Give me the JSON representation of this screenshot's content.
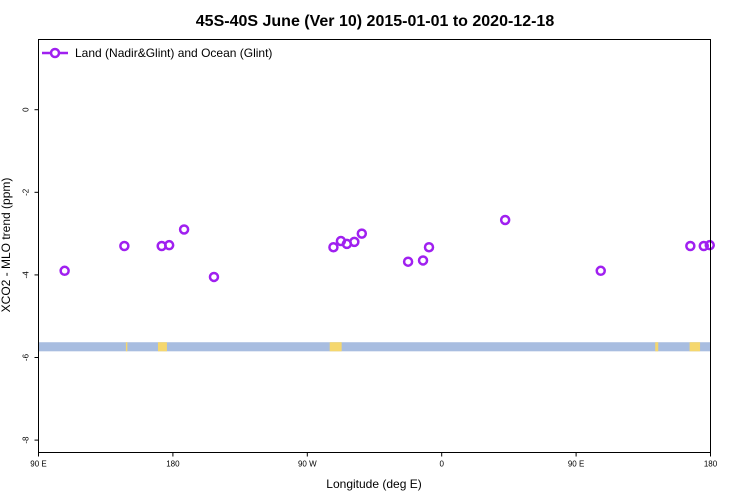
{
  "chart_data": {
    "type": "scatter",
    "title": "45S-40S June (Ver 10)   2015-01-01 to 2020-12-18",
    "xlabel": "Longitude (deg E)",
    "ylabel": "XCO2 - MLO trend (ppm)",
    "xlim": [
      90,
      540
    ],
    "ylim": [
      -8.3,
      1.7
    ],
    "x_ticks": [
      {
        "value": 90,
        "label": "90 E"
      },
      {
        "value": 180,
        "label": "180"
      },
      {
        "value": 270,
        "label": "90 W"
      },
      {
        "value": 360,
        "label": "0"
      },
      {
        "value": 450,
        "label": "90 E"
      },
      {
        "value": 540,
        "label": "180"
      }
    ],
    "y_ticks": [
      {
        "value": 0,
        "label": "0"
      },
      {
        "value": -2,
        "label": "-2"
      },
      {
        "value": -4,
        "label": "-4"
      },
      {
        "value": -6,
        "label": "-6"
      },
      {
        "value": -8,
        "label": "-8"
      }
    ],
    "grid": false,
    "legend_position": "top-left",
    "series": [
      {
        "name": "Land (Nadir&Glint) and Ocean (Glint)",
        "color": "#a020f0",
        "marker": "open-circle",
        "points": [
          {
            "x": 107.5,
            "y": -3.9
          },
          {
            "x": 147.5,
            "y": -3.3
          },
          {
            "x": 172.5,
            "y": -3.3
          },
          {
            "x": 177.5,
            "y": -3.28
          },
          {
            "x": 187.5,
            "y": -2.9
          },
          {
            "x": 207.5,
            "y": -4.05
          },
          {
            "x": 287.5,
            "y": -3.33
          },
          {
            "x": 292.5,
            "y": -3.18
          },
          {
            "x": 296.5,
            "y": -3.25
          },
          {
            "x": 301.5,
            "y": -3.2
          },
          {
            "x": 306.5,
            "y": -3.0
          },
          {
            "x": 337.5,
            "y": -3.68
          },
          {
            "x": 347.5,
            "y": -3.65
          },
          {
            "x": 351.5,
            "y": -3.33
          },
          {
            "x": 402.5,
            "y": -2.67
          },
          {
            "x": 466.5,
            "y": -3.9
          },
          {
            "x": 526.5,
            "y": -3.3
          },
          {
            "x": 535.5,
            "y": -3.3
          },
          {
            "x": 539.5,
            "y": -3.28
          }
        ]
      }
    ],
    "map_strip": {
      "y_top": -5.63,
      "y_bottom": -5.85,
      "ocean_color": "#a8bde0",
      "land_color": "#f5d76e",
      "land_spans": [
        {
          "x0": 148.5,
          "x1": 149.5
        },
        {
          "x0": 170,
          "x1": 176
        },
        {
          "x0": 285,
          "x1": 293
        },
        {
          "x0": 503,
          "x1": 505
        },
        {
          "x0": 526,
          "x1": 533
        }
      ]
    }
  }
}
